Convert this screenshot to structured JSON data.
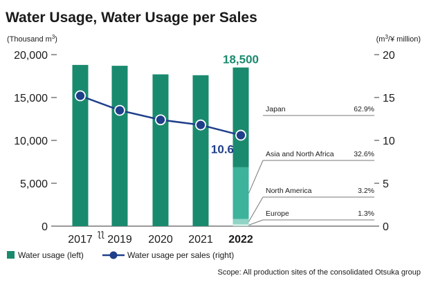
{
  "chart_data": {
    "type": "bar",
    "title": "Water Usage, Water Usage per Sales",
    "categories": [
      "2017",
      "2019",
      "2020",
      "2021",
      "2022"
    ],
    "axis_break_after": "2017",
    "y_left": {
      "label_main": "(Thousand m",
      "label_sup": "3",
      "label_end": ")",
      "ticks": [
        "0",
        "5,000",
        "10,000",
        "15,000",
        "20,000"
      ],
      "range": [
        0,
        20000
      ]
    },
    "y_right": {
      "label_pre": "(m",
      "label_sup": "3",
      "label_end": "/¥ million)",
      "ticks": [
        "0",
        "5",
        "10",
        "15",
        "20"
      ],
      "range": [
        0,
        20
      ]
    },
    "series": [
      {
        "name": "Water usage (left)",
        "kind": "bar",
        "color": "#1a8a6e",
        "values": [
          18800,
          18700,
          17700,
          17600,
          18500
        ]
      },
      {
        "name": "Water usage per sales (right)",
        "kind": "line",
        "color": "#1f3f8a",
        "values": [
          15.2,
          13.5,
          12.4,
          11.8,
          10.6
        ]
      }
    ],
    "breakdown_2022": [
      {
        "region": "Japan",
        "share": "62.9%",
        "value": 0.629,
        "color": "#1a8a6e"
      },
      {
        "region": "Asia and North Africa",
        "share": "32.6%",
        "value": 0.326,
        "color": "#3db39c"
      },
      {
        "region": "North America",
        "share": "3.2%",
        "value": 0.032,
        "color": "#8fd4c5"
      },
      {
        "region": "Europe",
        "share": "1.3%",
        "value": 0.013,
        "color": "#c9ebe3"
      }
    ],
    "annotations": {
      "bar_2022_total": "18,500",
      "line_2022_value": "10.6"
    },
    "grid": false,
    "legend_position": "bottom-left"
  },
  "footer": {
    "scope": "Scope: All production sites of the consolidated Otsuka group"
  }
}
